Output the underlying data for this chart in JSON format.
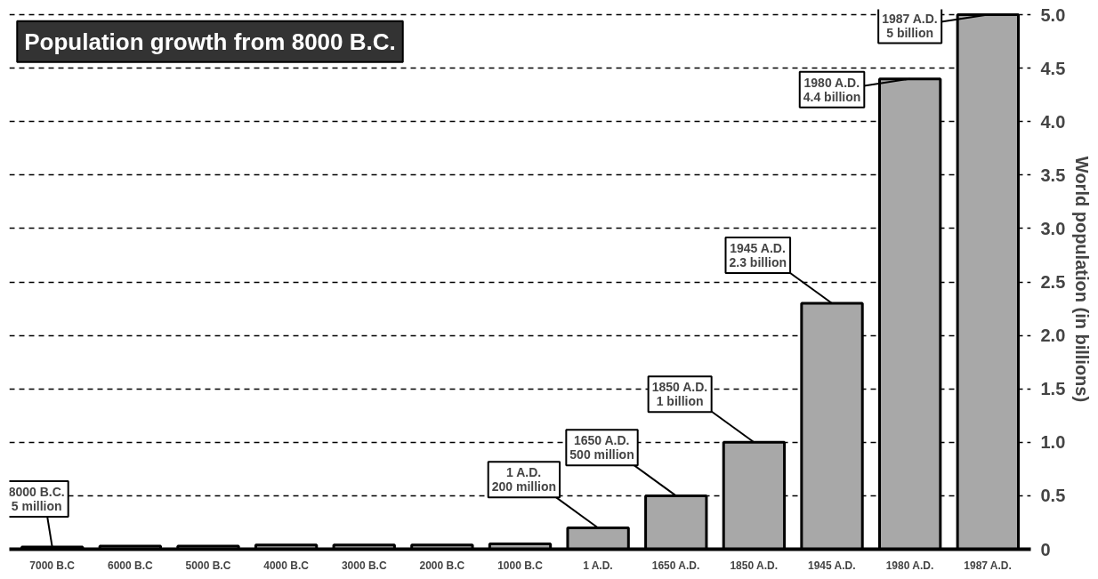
{
  "chart_data": {
    "type": "bar",
    "title": "Population growth from 8000 B.C.",
    "ylabel": "World population (in billions)",
    "categories": [
      "7000 B.C",
      "6000 B.C",
      "5000 B.C",
      "4000 B.C",
      "3000 B.C",
      "2000 B.C",
      "1000 B.C",
      "1 A.D.",
      "1650 A.D.",
      "1850 A.D.",
      "1945 A.D.",
      "1980 A.D.",
      "1987 A.D."
    ],
    "values": [
      0.02,
      0.03,
      0.03,
      0.04,
      0.04,
      0.04,
      0.05,
      0.2,
      0.5,
      1,
      2.3,
      4.4,
      5
    ],
    "color": "#a8a8a8",
    "ylim": [
      0,
      5
    ],
    "yticks": [
      0,
      0.5,
      {
        "value": 1,
        "label": "1.0"
      },
      1.5,
      {
        "value": 2,
        "label": "2.0"
      },
      2.5,
      {
        "value": 3,
        "label": "3.0"
      },
      3.5,
      {
        "value": 4,
        "label": "4.0"
      },
      4.5,
      {
        "value": 5,
        "label": "5.0"
      }
    ],
    "grid": "y",
    "annotations": [
      {
        "text": "8000 B.C.\n5 million",
        "x": "7000 B.C",
        "y": 0.02
      },
      {
        "text": "1 A.D.\n200 million",
        "x": "1 A.D.",
        "y": 0.2
      },
      {
        "text": "1650 A.D.\n500 million",
        "x": "1650 A.D.",
        "y": 0.5
      },
      {
        "text": "1850 A.D.\n1 billion",
        "x": "1850 A.D.",
        "y": 1
      },
      {
        "text": "1945 A.D.\n2.3 billion",
        "x": "1945 A.D.",
        "y": 2.3
      },
      {
        "text": "1980 A.D.\n4.4 billion",
        "x": "1980 A.D.",
        "y": 4.4
      },
      {
        "text": "1987 A.D.\n5 billion",
        "x": "1987 A.D.",
        "y": 5
      }
    ]
  }
}
